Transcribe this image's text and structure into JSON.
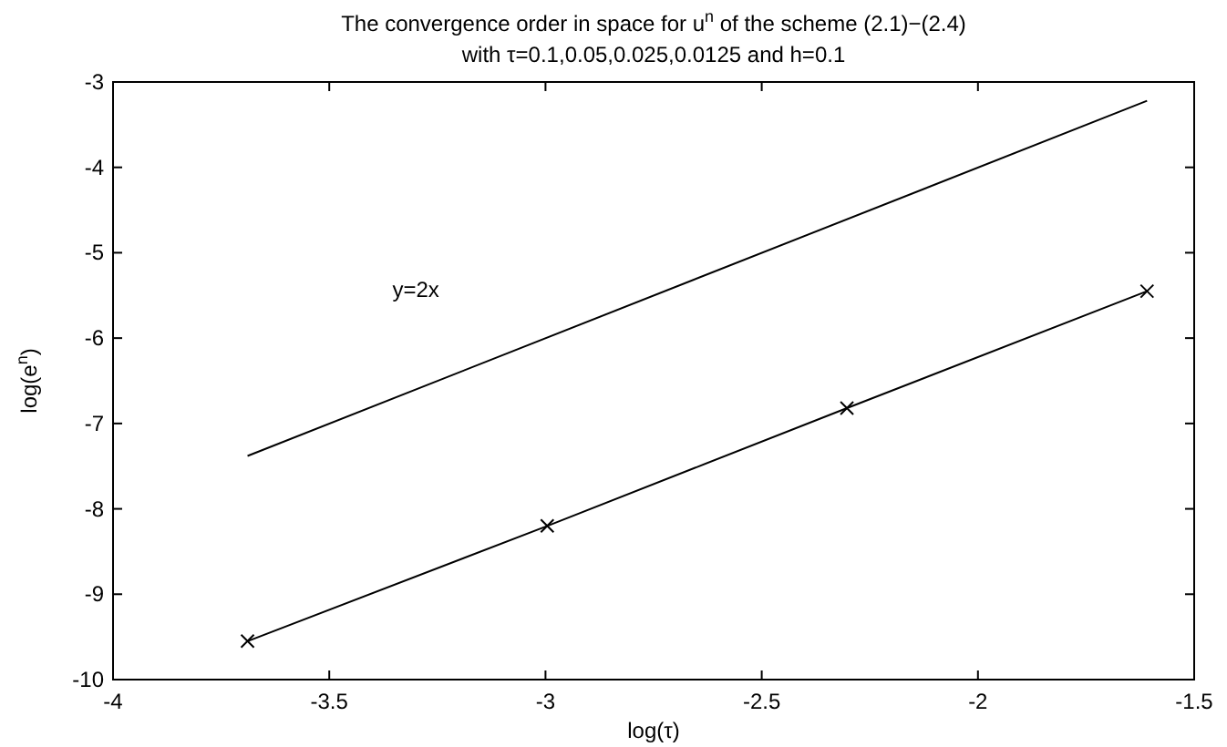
{
  "chart_data": {
    "type": "line",
    "title": "The convergence order in space for u$^{n}$ of the scheme (2.1)−(2.4)",
    "subtitle": "with τ=0.1,0.05,0.025,0.0125 and h=0.1",
    "xlabel": "log(τ)",
    "ylabel": "log(e$^{n}$)",
    "xlim": [
      -4,
      -1.5
    ],
    "xticks": [
      -4,
      -3.5,
      -3,
      -2.5,
      -2,
      -1.5
    ],
    "ylim": [
      -10,
      -3
    ],
    "yticks": [
      -10,
      -9,
      -8,
      -7,
      -6,
      -5,
      -4,
      -3
    ],
    "series": [
      {
        "color": "#000000",
        "x": [
          -3.689,
          -2.996,
          -2.303,
          -1.609
        ],
        "values": [
          -9.55,
          -8.2,
          -6.82,
          -5.45
        ],
        "marker": "cross"
      },
      {
        "color": "#000000",
        "x": [
          -3.689,
          -1.609
        ],
        "values": [
          -7.38,
          -3.22
        ],
        "marker": "none"
      }
    ],
    "annotations": [
      "y=2x"
    ]
  }
}
